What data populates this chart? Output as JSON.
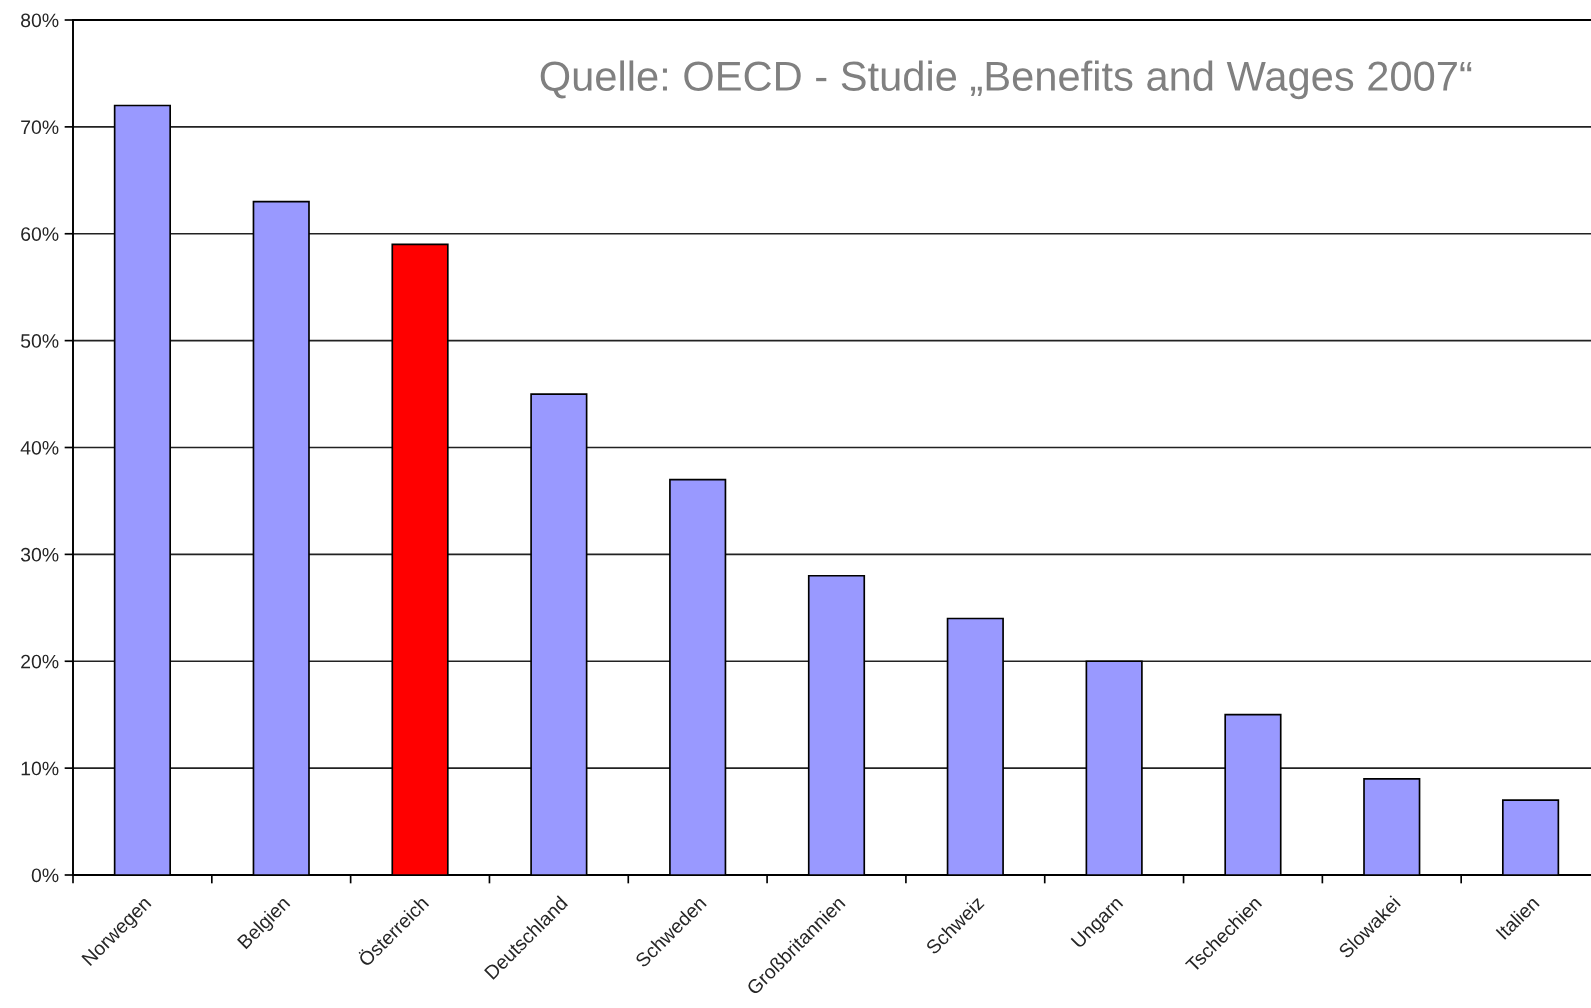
{
  "chart_data": {
    "type": "bar",
    "categories": [
      "Norwegen",
      "Belgien",
      "Österreich",
      "Deutschland",
      "Schweden",
      "Großbritannien",
      "Schweiz",
      "Ungarn",
      "Tschechien",
      "Slowakei",
      "Italien"
    ],
    "values": [
      72,
      63,
      59,
      45,
      37,
      28,
      24,
      20,
      15,
      9,
      7
    ],
    "colors": [
      "#9999ff",
      "#9999ff",
      "#ff0000",
      "#9999ff",
      "#9999ff",
      "#9999ff",
      "#9999ff",
      "#9999ff",
      "#9999ff",
      "#9999ff",
      "#9999ff"
    ],
    "ylim": [
      0,
      80
    ],
    "yticks": [
      {
        "value": 0,
        "label": "0%"
      },
      {
        "value": 10,
        "label": "10%"
      },
      {
        "value": 20,
        "label": "20%"
      },
      {
        "value": 30,
        "label": "30%"
      },
      {
        "value": 40,
        "label": "40%"
      },
      {
        "value": 50,
        "label": "50%"
      },
      {
        "value": 60,
        "label": "60%"
      },
      {
        "value": 70,
        "label": "70%"
      },
      {
        "value": 80,
        "label": "80%"
      }
    ],
    "grid": "y",
    "annotations": [
      "Quelle: OECD - Studie „Benefits and Wages 2007“"
    ]
  }
}
